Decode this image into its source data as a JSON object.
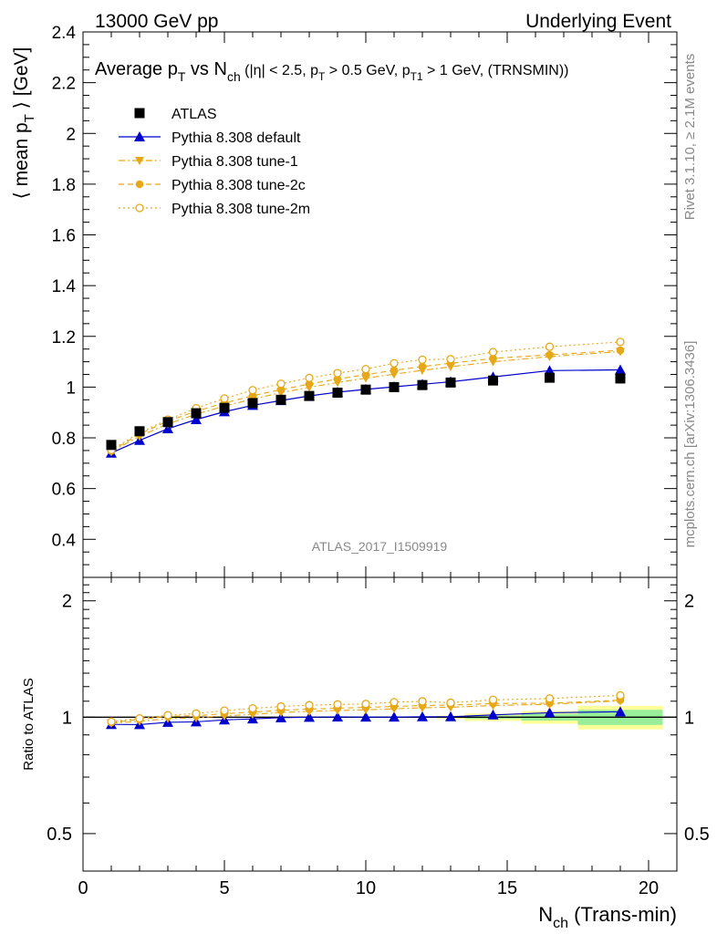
{
  "header": {
    "left": "13000 GeV pp",
    "right": "Underlying Event"
  },
  "side_labels": {
    "rivet": "Rivet 3.1.10, ≥ 2.1M events",
    "mcplots": "mcplots.cern.ch [arXiv:1306.3436]"
  },
  "chart_data": [
    {
      "type": "scatter",
      "title": "Average p_T vs N_ch (|η| < 2.5, p_T > 0.5 GeV, p_T1 > 1 GeV, (TRNSMIN))",
      "ylabel": "⟨ mean p_T ⟩ [GeV]",
      "watermark": "ATLAS_2017_I1509919",
      "xlim": [
        0,
        21
      ],
      "ylim": [
        0.25,
        2.4
      ],
      "yticks": [
        0.4,
        0.6,
        0.8,
        1,
        1.2,
        1.4,
        1.6,
        1.8,
        2,
        2.2,
        2.4
      ],
      "ytick_labels": [
        "0.4",
        "0.6",
        "0.8",
        "1",
        "1.2",
        "1.4",
        "1.6",
        "1.8",
        "2",
        "2.2",
        "2.4"
      ],
      "legend_position": "top-left",
      "x": [
        1,
        2,
        3,
        4,
        5,
        6,
        7,
        8,
        9,
        10,
        11,
        12,
        13,
        14.5,
        16.5,
        19
      ],
      "series": [
        {
          "name": "ATLAS",
          "style": "data",
          "color": "#000000",
          "marker": "square",
          "values": [
            0.772,
            0.826,
            0.862,
            0.897,
            0.918,
            0.937,
            0.95,
            0.965,
            0.978,
            0.99,
            1.0,
            1.008,
            1.018,
            1.026,
            1.037,
            1.034
          ]
        },
        {
          "name": "Pythia 8.308 default",
          "style": "solid",
          "color": "#0000cc",
          "marker": "triangle-up",
          "values": [
            0.74,
            0.79,
            0.836,
            0.872,
            0.903,
            0.928,
            0.947,
            0.965,
            0.98,
            0.991,
            1.001,
            1.011,
            1.021,
            1.04,
            1.065,
            1.068
          ]
        },
        {
          "name": "Pythia 8.308 tune-1",
          "style": "dashdot",
          "color": "#e6a817",
          "marker": "triangle-down",
          "values": [
            0.745,
            0.806,
            0.855,
            0.893,
            0.925,
            0.953,
            0.978,
            0.999,
            1.018,
            1.035,
            1.051,
            1.066,
            1.08,
            1.1,
            1.12,
            1.14
          ]
        },
        {
          "name": "Pythia 8.308 tune-2c",
          "style": "dashed",
          "color": "#e6a817",
          "marker": "circle",
          "values": [
            0.748,
            0.815,
            0.866,
            0.905,
            0.937,
            0.966,
            0.99,
            1.012,
            1.032,
            1.049,
            1.066,
            1.081,
            1.094,
            1.113,
            1.127,
            1.145
          ]
        },
        {
          "name": "Pythia 8.308 tune-2m",
          "style": "dotted",
          "color": "#e6a817",
          "marker": "open-circle",
          "values": [
            0.752,
            0.82,
            0.872,
            0.917,
            0.955,
            0.988,
            1.013,
            1.036,
            1.055,
            1.071,
            1.094,
            1.108,
            1.11,
            1.138,
            1.159,
            1.178
          ]
        }
      ]
    },
    {
      "type": "scatter",
      "ylabel": "Ratio to ATLAS",
      "xlabel": "N_ch (Trans-min)",
      "xlim": [
        0,
        21
      ],
      "ylim": [
        0.4,
        2.3
      ],
      "log_y": true,
      "xticks": [
        0,
        5,
        10,
        15,
        20
      ],
      "xtick_labels": [
        "0",
        "5",
        "10",
        "15",
        "20"
      ],
      "yticks": [
        0.5,
        1,
        2
      ],
      "ytick_labels": [
        "0.5",
        "1",
        "2"
      ],
      "x": [
        1,
        2,
        3,
        4,
        5,
        6,
        7,
        8,
        9,
        10,
        11,
        12,
        13,
        14.5,
        16.5,
        19
      ],
      "uncertainty_band": {
        "stat_color": "#99ee99",
        "total_color": "#ffff99",
        "bins": [
          {
            "x": [
              12.5,
              13.5
            ],
            "stat": 0.004,
            "total": 0.01
          },
          {
            "x": [
              13.5,
              15.5
            ],
            "stat": 0.01,
            "total": 0.022
          },
          {
            "x": [
              15.5,
              17.5
            ],
            "stat": 0.02,
            "total": 0.038
          },
          {
            "x": [
              17.5,
              20.5
            ],
            "stat": 0.045,
            "total": 0.07
          }
        ]
      },
      "series": [
        {
          "name": "Pythia 8.308 default",
          "style": "solid",
          "color": "#0000cc",
          "marker": "triangle-up",
          "values": [
            0.958,
            0.957,
            0.97,
            0.973,
            0.984,
            0.99,
            0.997,
            1.0,
            1.002,
            1.001,
            1.001,
            1.003,
            1.003,
            1.014,
            1.027,
            1.033
          ]
        },
        {
          "name": "Pythia 8.308 tune-1",
          "style": "dashdot",
          "color": "#e6a817",
          "marker": "triangle-down",
          "values": [
            0.965,
            0.976,
            0.992,
            0.996,
            1.008,
            1.017,
            1.029,
            1.035,
            1.041,
            1.045,
            1.051,
            1.058,
            1.061,
            1.072,
            1.08,
            1.102
          ]
        },
        {
          "name": "Pythia 8.308 tune-2c",
          "style": "dashed",
          "color": "#e6a817",
          "marker": "circle",
          "values": [
            0.969,
            0.987,
            1.005,
            1.009,
            1.021,
            1.031,
            1.042,
            1.049,
            1.055,
            1.06,
            1.066,
            1.072,
            1.075,
            1.085,
            1.087,
            1.107
          ]
        },
        {
          "name": "Pythia 8.308 tune-2m",
          "style": "dotted",
          "color": "#e6a817",
          "marker": "open-circle",
          "values": [
            0.974,
            0.993,
            1.012,
            1.022,
            1.04,
            1.054,
            1.066,
            1.074,
            1.079,
            1.082,
            1.094,
            1.099,
            1.09,
            1.109,
            1.118,
            1.139
          ]
        }
      ]
    }
  ]
}
